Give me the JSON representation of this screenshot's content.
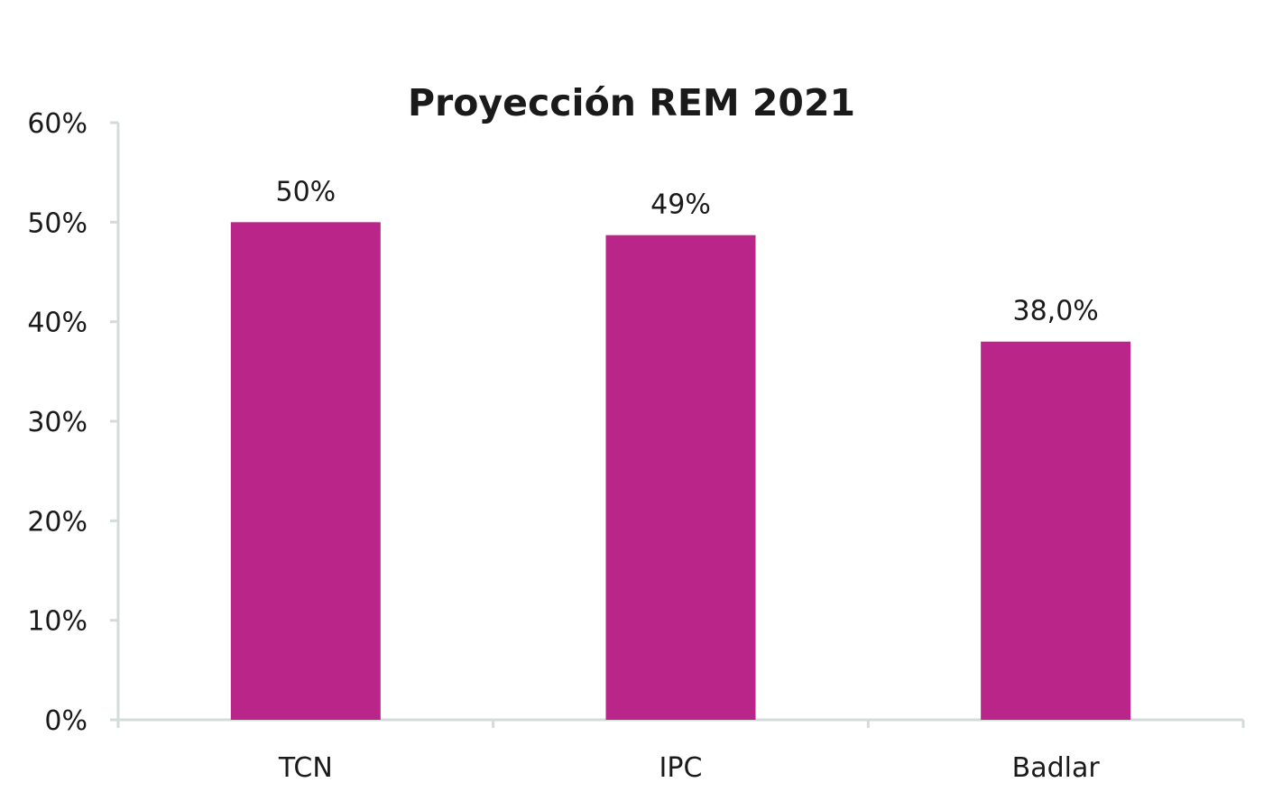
{
  "chart_data": {
    "type": "bar",
    "title": "Proyección REM 2021",
    "xlabel": "",
    "ylabel": "",
    "categories": [
      "TCN",
      "IPC",
      "Badlar"
    ],
    "values": [
      50,
      48.7,
      38.0
    ],
    "data_labels": [
      "50%",
      "49%",
      "38,0%"
    ],
    "ylim": [
      0,
      60
    ],
    "yticks": [
      0,
      10,
      20,
      30,
      40,
      50,
      60
    ],
    "ytick_labels": [
      "0%",
      "10%",
      "20%",
      "30%",
      "40%",
      "50%",
      "60%"
    ],
    "grid": false,
    "legend": "none",
    "colors": {
      "bar": "#b92588",
      "axis": "#d3dcd9",
      "text": "#1a1a1a"
    }
  }
}
